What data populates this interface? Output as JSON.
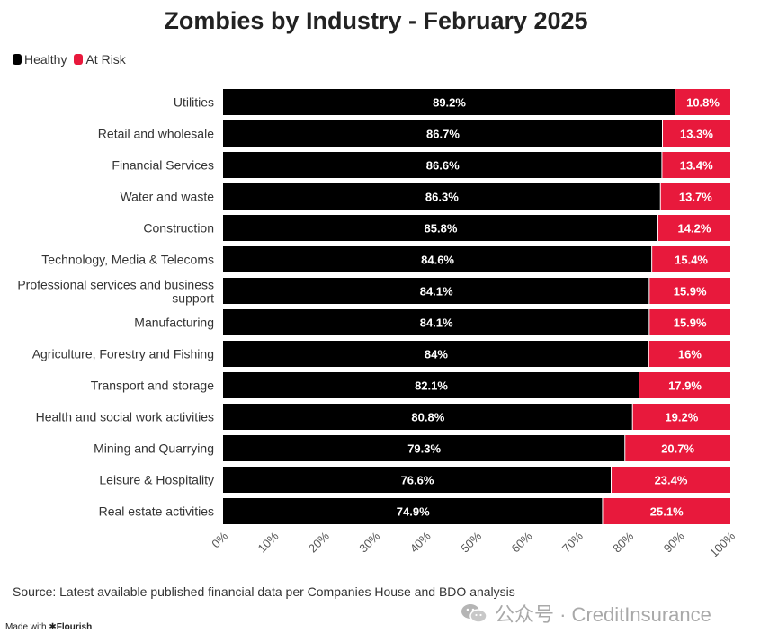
{
  "chart_data": {
    "type": "bar",
    "orientation": "horizontal",
    "stacked": true,
    "title": "Zombies by Industry - February 2025",
    "xlabel": "",
    "ylabel": "",
    "xlim": [
      0,
      100
    ],
    "x_tick_labels": [
      "0%",
      "10%",
      "20%",
      "30%",
      "40%",
      "50%",
      "60%",
      "70%",
      "80%",
      "90%",
      "100%"
    ],
    "legend_position": "top-left",
    "grid": false,
    "categories": [
      "Utilities",
      "Retail and wholesale",
      "Financial Services",
      "Water and waste",
      "Construction",
      "Technology, Media & Telecoms",
      "Professional services and business support",
      "Manufacturing",
      "Agriculture, Forestry and Fishing",
      "Transport and storage",
      "Health and social work activities",
      "Mining and Quarrying",
      "Leisure & Hospitality",
      "Real estate activities"
    ],
    "series": [
      {
        "name": "Healthy",
        "color": "#000000",
        "values": [
          89.2,
          86.7,
          86.6,
          86.3,
          85.8,
          84.6,
          84.1,
          84.1,
          84,
          82.1,
          80.8,
          79.3,
          76.6,
          74.9
        ],
        "labels": [
          "89.2%",
          "86.7%",
          "86.6%",
          "86.3%",
          "85.8%",
          "84.6%",
          "84.1%",
          "84.1%",
          "84%",
          "82.1%",
          "80.8%",
          "79.3%",
          "76.6%",
          "74.9%"
        ]
      },
      {
        "name": "At Risk",
        "color": "#e8193c",
        "values": [
          10.8,
          13.3,
          13.4,
          13.7,
          14.2,
          15.4,
          15.9,
          15.9,
          16,
          17.9,
          19.2,
          20.7,
          23.4,
          25.1
        ],
        "labels": [
          "10.8%",
          "13.3%",
          "13.4%",
          "13.7%",
          "14.2%",
          "15.4%",
          "15.9%",
          "15.9%",
          "16%",
          "17.9%",
          "19.2%",
          "20.7%",
          "23.4%",
          "25.1%"
        ]
      }
    ]
  },
  "footer": {
    "source": "Source: Latest available published financial data per Companies House and BDO analysis",
    "credit_prefix": "Made with",
    "credit_brand": "✱Flourish",
    "watermark": "公众号 · CreditInsurance"
  }
}
